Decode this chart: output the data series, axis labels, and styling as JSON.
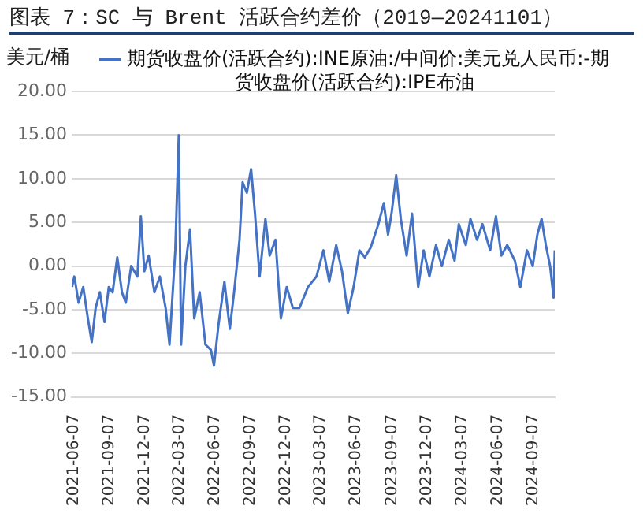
{
  "chart_data": {
    "type": "line",
    "title": "图表 7：SC 与 Brent 活跃合约差价（2019—20241101）",
    "ylabel": "美元/桶",
    "x": [
      "2021-06-02",
      "2021-06-08",
      "2021-06-19",
      "2021-07-01",
      "2021-07-13",
      "2021-07-23",
      "2021-08-02",
      "2021-08-13",
      "2021-08-25",
      "2021-09-05",
      "2021-09-15",
      "2021-09-27",
      "2021-10-09",
      "2021-10-19",
      "2021-11-02",
      "2021-11-18",
      "2021-11-27",
      "2021-12-06",
      "2021-12-17",
      "2022-01-01",
      "2022-01-15",
      "2022-01-30",
      "2022-02-09",
      "2022-02-24",
      "2022-03-05",
      "2022-03-11",
      "2022-03-22",
      "2022-04-03",
      "2022-04-14",
      "2022-04-28",
      "2022-05-13",
      "2022-05-27",
      "2022-06-04",
      "2022-06-16",
      "2022-07-01",
      "2022-07-15",
      "2022-07-26",
      "2022-08-09",
      "2022-08-17",
      "2022-08-28",
      "2022-09-08",
      "2022-09-18",
      "2022-09-30",
      "2022-10-15",
      "2022-10-26",
      "2022-11-10",
      "2022-11-24",
      "2022-12-09",
      "2022-12-25",
      "2023-01-11",
      "2023-02-02",
      "2023-02-24",
      "2023-03-14",
      "2023-03-29",
      "2023-04-16",
      "2023-05-01",
      "2023-05-16",
      "2023-05-31",
      "2023-06-15",
      "2023-06-29",
      "2023-07-14",
      "2023-08-03",
      "2023-08-17",
      "2023-08-28",
      "2023-09-06",
      "2023-09-18",
      "2023-09-30",
      "2023-10-15",
      "2023-10-29",
      "2023-11-14",
      "2023-11-28",
      "2023-12-13",
      "2023-12-30",
      "2024-01-14",
      "2024-02-01",
      "2024-02-16",
      "2024-02-27",
      "2024-03-16",
      "2024-03-28",
      "2024-04-14",
      "2024-04-28",
      "2024-05-18",
      "2024-06-02",
      "2024-06-16",
      "2024-07-01",
      "2024-07-21",
      "2024-08-04",
      "2024-08-21",
      "2024-09-05",
      "2024-09-17",
      "2024-09-28",
      "2024-10-09",
      "2024-10-20",
      "2024-10-29",
      "2024-11-01"
    ],
    "series": [
      {
        "name": "期货收盘价(活跃合约):INE原油:/中间价:美元兑人民币:-期货收盘价(活跃合约):IPE布油",
        "color": "#4472c4",
        "values": [
          -2.4,
          -1.2,
          -4.2,
          -2.4,
          -6.0,
          -8.7,
          -4.8,
          -3.0,
          -6.4,
          -2.4,
          -3.0,
          1.0,
          -3.0,
          -4.2,
          0,
          -1.2,
          5.7,
          -0.6,
          1.2,
          -3.0,
          -1.2,
          -4.8,
          -9.0,
          1.8,
          15.0,
          -9.0,
          0,
          4.2,
          -6.0,
          -3.0,
          -9.0,
          -9.6,
          -11.4,
          -6.6,
          -1.8,
          -7.2,
          -3.0,
          3.0,
          9.6,
          8.4,
          11.1,
          6.0,
          -1.2,
          5.4,
          1.2,
          3.0,
          -6.0,
          -2.4,
          -4.8,
          -4.8,
          -2.4,
          -1.2,
          1.8,
          -1.8,
          2.4,
          -0.6,
          -5.4,
          -2.4,
          1.8,
          1.0,
          2.1,
          4.8,
          7.2,
          3.6,
          6.0,
          10.4,
          5.4,
          1.2,
          6.0,
          -2.4,
          1.8,
          -1.2,
          2.4,
          0,
          3.0,
          0.6,
          4.8,
          2.4,
          5.4,
          3.0,
          4.8,
          1.8,
          5.7,
          1.2,
          2.4,
          0.6,
          -2.4,
          1.8,
          0,
          3.6,
          5.4,
          2.4,
          0,
          -3.6,
          1.8
        ]
      }
    ],
    "xlim": [
      "2021-06-01",
      "2024-11-01"
    ],
    "xticks": [
      "2021-06-07",
      "2021-09-07",
      "2021-12-07",
      "2022-03-07",
      "2022-06-07",
      "2022-09-07",
      "2022-12-07",
      "2023-03-07",
      "2023-06-07",
      "2023-09-07",
      "2023-12-07",
      "2024-03-07",
      "2024-06-07",
      "2024-09-07"
    ],
    "ylim": [
      -15,
      20
    ],
    "yticks": [
      {
        "value": -15,
        "label": "-15.00"
      },
      {
        "value": -10,
        "label": "-10.00"
      },
      {
        "value": -5,
        "label": "-5.00"
      },
      {
        "value": 0,
        "label": "0.00"
      },
      {
        "value": 5,
        "label": "5.00"
      },
      {
        "value": 10,
        "label": "10.00"
      },
      {
        "value": 15,
        "label": "15.00"
      },
      {
        "value": 20,
        "label": "20.00"
      }
    ],
    "grid": "y",
    "legend": "top",
    "marker": "none",
    "line_style": "solid"
  }
}
